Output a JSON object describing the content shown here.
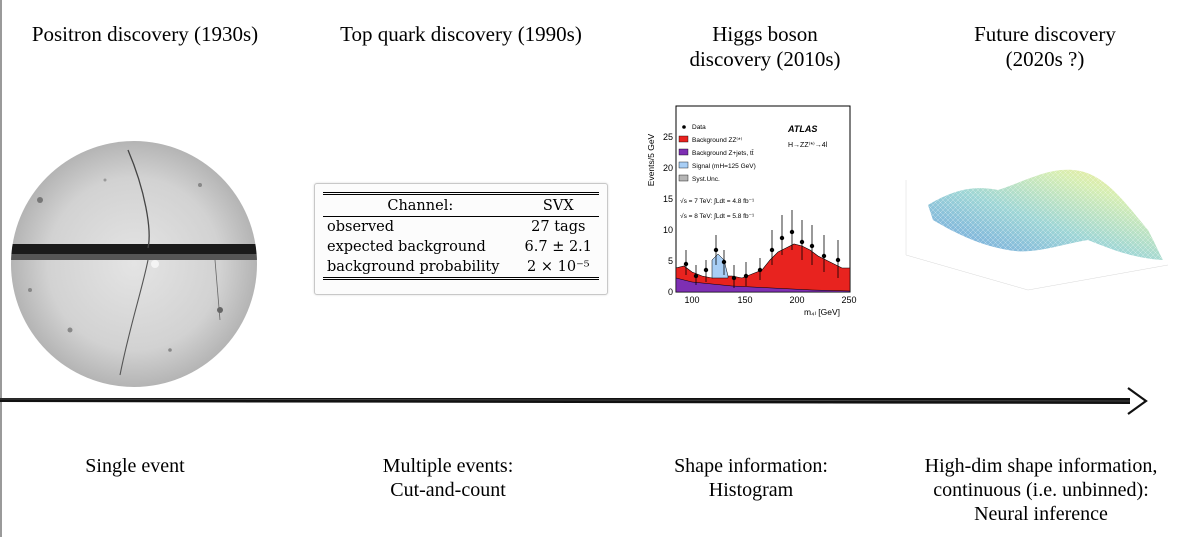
{
  "eras": [
    {
      "title_lines": [
        "Positron discovery (1930s)"
      ],
      "caption_lines": [
        "Single event"
      ]
    },
    {
      "title_lines": [
        "Top quark discovery (1990s)"
      ],
      "caption_lines": [
        "Multiple events:",
        "Cut-and-count"
      ]
    },
    {
      "title_lines": [
        "Higgs boson",
        "discovery (2010s)"
      ],
      "caption_lines": [
        "Shape information:",
        "Histogram"
      ]
    },
    {
      "title_lines": [
        "Future discovery",
        "(2020s ?)"
      ],
      "caption_lines": [
        "High-dim shape information,",
        "continuous (i.e. unbinned):",
        "Neural inference"
      ]
    }
  ],
  "svx_table": {
    "header": [
      "Channel:",
      "SVX"
    ],
    "rows": [
      [
        "observed",
        "27 tags"
      ],
      [
        "expected background",
        "6.7 ± 2.1"
      ],
      [
        "background probability",
        "2 × 10⁻⁵"
      ]
    ]
  },
  "higgs_plot": {
    "experiment": "ATLAS",
    "process": "H→ZZ⁽*⁾→4l",
    "ylabel": "Events/5 GeV",
    "xlabel": "m₄ₗ [GeV]",
    "legend": [
      "Data",
      "Background ZZ⁽*⁾",
      "Background Z+jets, tt̄",
      "Signal (mH=125 GeV)",
      "Syst.Unc."
    ],
    "lumi_lines": [
      "√s = 7 TeV: ∫Ldt = 4.8 fb⁻¹",
      "√s = 8 TeV: ∫Ldt = 5.8 fb⁻¹"
    ],
    "x_ticks": [
      "100",
      "150",
      "200",
      "250"
    ],
    "y_ticks": [
      "0",
      "5",
      "10",
      "15",
      "20",
      "25"
    ],
    "colors": {
      "zz": "#e8231f",
      "zjets": "#7e2fb3",
      "signal": "#a8cef5",
      "syst": "#b5b5b5"
    }
  }
}
